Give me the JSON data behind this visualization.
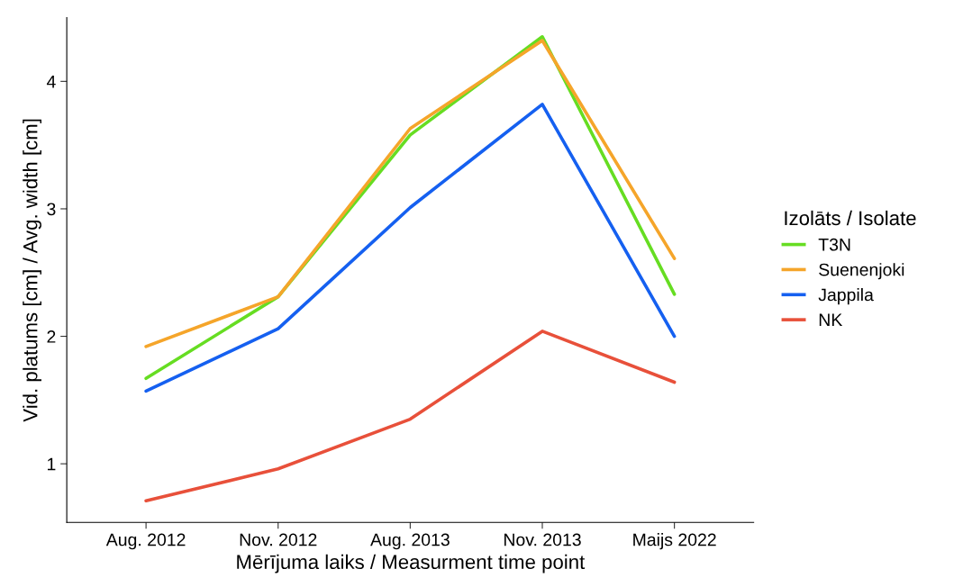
{
  "chart_data": {
    "type": "line",
    "xlabel": "Mērījuma laiks / Measurment time point",
    "ylabel": "Vid. platums [cm] / Avg. width [cm]",
    "legend_title": "Izolāts / Isolate",
    "categories": [
      "Aug. 2012",
      "Nov. 2012",
      "Aug. 2013",
      "Nov. 2013",
      "Maijs 2022"
    ],
    "series": [
      {
        "name": "T3N",
        "color": "#66dd22",
        "values": [
          1.67,
          2.31,
          3.58,
          4.35,
          2.33
        ]
      },
      {
        "name": "Suenenjoki",
        "color": "#f5a52a",
        "values": [
          1.92,
          2.31,
          3.63,
          4.32,
          2.61
        ]
      },
      {
        "name": "Jappila",
        "color": "#1560f0",
        "values": [
          1.57,
          2.06,
          3.01,
          3.82,
          2.0
        ]
      },
      {
        "name": "NK",
        "color": "#e8503a",
        "values": [
          0.71,
          0.96,
          1.35,
          2.04,
          1.64
        ]
      }
    ],
    "ylim": [
      0.54,
      4.5
    ],
    "yticks": [
      1,
      2,
      3,
      4
    ],
    "grid": false,
    "legend": "right",
    "marker": "none",
    "line_style": "solid"
  }
}
